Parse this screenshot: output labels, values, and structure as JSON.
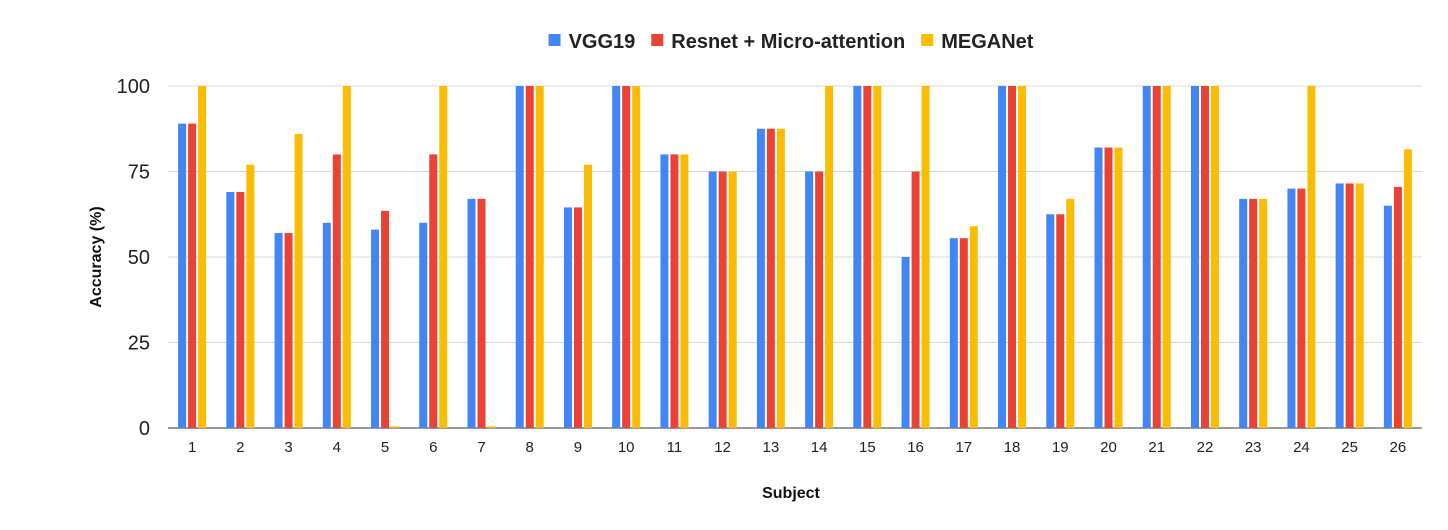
{
  "chart_data": {
    "type": "bar",
    "title": "",
    "xlabel": "Subject",
    "ylabel": "Accuracy (%)",
    "ylim": [
      0,
      100
    ],
    "yticks": [
      0,
      25,
      50,
      75,
      100
    ],
    "grid": true,
    "legend_position": "top-center",
    "categories": [
      "1",
      "2",
      "3",
      "4",
      "5",
      "6",
      "7",
      "8",
      "9",
      "10",
      "11",
      "12",
      "13",
      "14",
      "15",
      "16",
      "17",
      "18",
      "19",
      "20",
      "21",
      "22",
      "23",
      "24",
      "25",
      "26"
    ],
    "series": [
      {
        "name": "VGG19",
        "color": "#4285f4",
        "values": [
          89,
          69,
          57,
          60,
          58,
          60,
          67,
          100,
          64.5,
          100,
          80,
          75,
          87.5,
          75,
          100,
          50,
          55.5,
          100,
          62.5,
          82,
          100,
          100,
          67,
          70,
          71.5,
          65
        ]
      },
      {
        "name": "Resnet + Micro-attention",
        "color": "#ea4335",
        "values": [
          89,
          69,
          57,
          80,
          63.5,
          80,
          67,
          100,
          64.5,
          100,
          80,
          75,
          87.5,
          75,
          100,
          75,
          55.5,
          100,
          62.5,
          82,
          100,
          100,
          67,
          70,
          71.5,
          70.5
        ]
      },
      {
        "name": "MEGANet",
        "color": "#fbbc04",
        "values": [
          100,
          77,
          86,
          100,
          0.5,
          100,
          0.5,
          100,
          77,
          100,
          80,
          75,
          87.5,
          100,
          100,
          100,
          59,
          100,
          67,
          82,
          100,
          100,
          67,
          100,
          71.5,
          81.5
        ]
      }
    ]
  }
}
